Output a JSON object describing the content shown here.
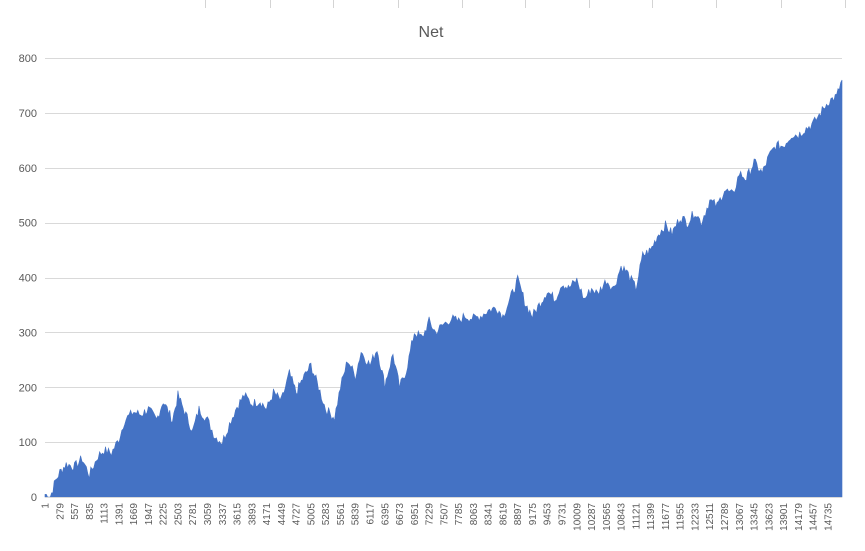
{
  "chart_data": {
    "type": "area",
    "title": "Net",
    "xlabel": "",
    "ylabel": "",
    "ylim": [
      0,
      800
    ],
    "yticks": [
      0,
      100,
      200,
      300,
      400,
      500,
      600,
      700,
      800
    ],
    "grid": true,
    "legend": "none",
    "color": "#4472C4",
    "x_tick_labels": [
      "1",
      "279",
      "557",
      "835",
      "1113",
      "1391",
      "1669",
      "1947",
      "2225",
      "2503",
      "2781",
      "3059",
      "3337",
      "3615",
      "3893",
      "4171",
      "4449",
      "4727",
      "5005",
      "5283",
      "5561",
      "5839",
      "6117",
      "6395",
      "6673",
      "6951",
      "7229",
      "7507",
      "7785",
      "8063",
      "8341",
      "8619",
      "8897",
      "9175",
      "9453",
      "9731",
      "10009",
      "10287",
      "10565",
      "10843",
      "11121",
      "11399",
      "11677",
      "11955",
      "12233",
      "12511",
      "12789",
      "13067",
      "13345",
      "13623",
      "13901",
      "14179",
      "14457",
      "14735"
    ],
    "x": [
      1,
      100,
      200,
      279,
      400,
      557,
      700,
      835,
      1000,
      1113,
      1250,
      1391,
      1500,
      1669,
      1800,
      1947,
      2100,
      2225,
      2400,
      2503,
      2650,
      2781,
      2900,
      3059,
      3200,
      3337,
      3500,
      3615,
      3750,
      3893,
      4050,
      4171,
      4300,
      4449,
      4600,
      4727,
      4850,
      5005,
      5150,
      5283,
      5450,
      5561,
      5700,
      5839,
      5950,
      6117,
      6250,
      6395,
      6550,
      6673,
      6800,
      6951,
      7100,
      7229,
      7350,
      7507,
      7650,
      7785,
      7900,
      8063,
      8200,
      8341,
      8500,
      8619,
      8750,
      8897,
      9050,
      9175,
      9300,
      9453,
      9600,
      9731,
      9850,
      10009,
      10150,
      10287,
      10400,
      10565,
      10700,
      10843,
      10950,
      11121,
      11250,
      11399,
      11550,
      11677,
      11800,
      11955,
      12100,
      12233,
      12350,
      12511,
      12650,
      12789,
      12950,
      13067,
      13200,
      13345,
      13500,
      13623,
      13750,
      13901,
      14050,
      14179,
      14300,
      14457,
      14600,
      14735,
      14900,
      15000
    ],
    "y": [
      5,
      0,
      30,
      45,
      60,
      55,
      70,
      40,
      75,
      85,
      80,
      105,
      140,
      155,
      150,
      160,
      140,
      175,
      140,
      185,
      150,
      120,
      160,
      140,
      110,
      100,
      140,
      165,
      185,
      170,
      175,
      160,
      190,
      175,
      225,
      190,
      215,
      240,
      200,
      160,
      145,
      200,
      250,
      220,
      265,
      240,
      270,
      205,
      260,
      200,
      230,
      300,
      290,
      320,
      300,
      315,
      325,
      320,
      330,
      325,
      330,
      340,
      345,
      330,
      360,
      395,
      350,
      330,
      350,
      375,
      360,
      390,
      380,
      395,
      360,
      380,
      370,
      395,
      380,
      420,
      410,
      380,
      440,
      450,
      480,
      495,
      480,
      510,
      500,
      520,
      500,
      540,
      530,
      560,
      550,
      590,
      580,
      610,
      590,
      620,
      640,
      640,
      660,
      660,
      670,
      680,
      700,
      720,
      730,
      760
    ]
  }
}
